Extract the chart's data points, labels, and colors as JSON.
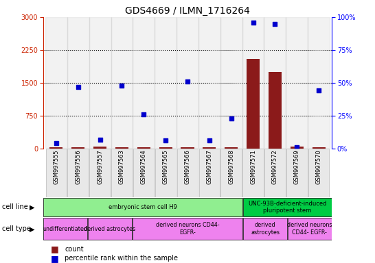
{
  "title": "GDS4669 / ILMN_1716264",
  "samples": [
    "GSM997555",
    "GSM997556",
    "GSM997557",
    "GSM997563",
    "GSM997564",
    "GSM997565",
    "GSM997566",
    "GSM997567",
    "GSM997568",
    "GSM997571",
    "GSM997572",
    "GSM997569",
    "GSM997570"
  ],
  "count_values": [
    30,
    35,
    40,
    30,
    35,
    30,
    30,
    35,
    30,
    2050,
    1750,
    50,
    35
  ],
  "percentile_values": [
    4,
    47,
    7,
    48,
    26,
    6,
    51,
    6,
    23,
    96,
    95,
    1,
    44
  ],
  "ylim_left": [
    0,
    3000
  ],
  "ylim_right": [
    0,
    100
  ],
  "yticks_left": [
    0,
    750,
    1500,
    2250,
    3000
  ],
  "yticks_right": [
    0,
    25,
    50,
    75,
    100
  ],
  "cell_line_groups": [
    {
      "label": "embryonic stem cell H9",
      "start": 0,
      "end": 9,
      "color": "#90EE90"
    },
    {
      "label": "UNC-93B-deficient-induced\npluripotent stem",
      "start": 9,
      "end": 13,
      "color": "#00CC44"
    }
  ],
  "cell_type_groups": [
    {
      "label": "undifferentiated",
      "start": 0,
      "end": 2,
      "color": "#EE82EE"
    },
    {
      "label": "derived astrocytes",
      "start": 2,
      "end": 4,
      "color": "#EE82EE"
    },
    {
      "label": "derived neurons CD44-\nEGFR-",
      "start": 4,
      "end": 9,
      "color": "#EE82EE"
    },
    {
      "label": "derived\nastrocytes",
      "start": 9,
      "end": 11,
      "color": "#EE82EE"
    },
    {
      "label": "derived neurons\nCD44- EGFR-",
      "start": 11,
      "end": 13,
      "color": "#EE82EE"
    }
  ],
  "bar_color": "#8B1A1A",
  "dot_color": "#0000CD",
  "dotted_lines": [
    750,
    1500,
    2250
  ],
  "label_fontsize": 7,
  "title_fontsize": 10,
  "tick_fontsize": 7,
  "sample_fontsize": 6
}
